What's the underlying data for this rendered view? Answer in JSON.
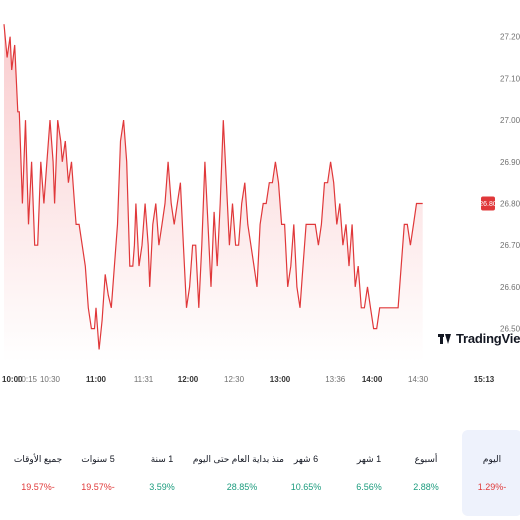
{
  "chart_data": {
    "type": "area",
    "y_ticks": [
      "27.20",
      "27.10",
      "27.00",
      "26.90",
      "26.80",
      "26.70",
      "26.60",
      "26.50"
    ],
    "ylim": [
      26.42,
      27.24
    ],
    "x_ticks": [
      {
        "label": "10:00",
        "major": true,
        "at": 0
      },
      {
        "label": "10:15",
        "major": false,
        "at": 15
      },
      {
        "label": "10:30",
        "major": false,
        "at": 30
      },
      {
        "label": "11:00",
        "major": true,
        "at": 60
      },
      {
        "label": "11:31",
        "major": false,
        "at": 91
      },
      {
        "label": "12:00",
        "major": true,
        "at": 120
      },
      {
        "label": "12:30",
        "major": false,
        "at": 150
      },
      {
        "label": "13:00",
        "major": true,
        "at": 180
      },
      {
        "label": "13:36",
        "major": false,
        "at": 216
      },
      {
        "label": "14:00",
        "major": true,
        "at": 240
      },
      {
        "label": "14:30",
        "major": false,
        "at": 270
      },
      {
        "label": "15:13",
        "major": true,
        "at": 313
      }
    ],
    "x_range_minutes": [
      0,
      313
    ],
    "last_price": "26.80",
    "series": [
      {
        "values": [
          [
            0,
            27.23
          ],
          [
            2,
            27.15
          ],
          [
            4,
            27.2
          ],
          [
            5,
            27.12
          ],
          [
            7,
            27.18
          ],
          [
            9,
            27.02
          ],
          [
            10,
            27.02
          ],
          [
            12,
            26.8
          ],
          [
            14,
            27.0
          ],
          [
            16,
            26.75
          ],
          [
            18,
            26.9
          ],
          [
            20,
            26.7
          ],
          [
            22,
            26.7
          ],
          [
            24,
            26.9
          ],
          [
            26,
            26.8
          ],
          [
            28,
            26.9
          ],
          [
            30,
            27.0
          ],
          [
            32,
            26.9
          ],
          [
            33,
            26.8
          ],
          [
            35,
            27.0
          ],
          [
            37,
            26.95
          ],
          [
            38,
            26.9
          ],
          [
            40,
            26.95
          ],
          [
            42,
            26.85
          ],
          [
            44,
            26.9
          ],
          [
            46,
            26.8
          ],
          [
            47,
            26.75
          ],
          [
            49,
            26.75
          ],
          [
            51,
            26.7
          ],
          [
            53,
            26.65
          ],
          [
            55,
            26.55
          ],
          [
            57,
            26.5
          ],
          [
            59,
            26.5
          ],
          [
            60,
            26.55
          ],
          [
            62,
            26.45
          ],
          [
            64,
            26.52
          ],
          [
            66,
            26.63
          ],
          [
            68,
            26.58
          ],
          [
            70,
            26.55
          ],
          [
            72,
            26.65
          ],
          [
            74,
            26.75
          ],
          [
            76,
            26.95
          ],
          [
            78,
            27.0
          ],
          [
            80,
            26.9
          ],
          [
            82,
            26.65
          ],
          [
            84,
            26.65
          ],
          [
            85,
            26.7
          ],
          [
            86,
            26.8
          ],
          [
            88,
            26.65
          ],
          [
            90,
            26.7
          ],
          [
            92,
            26.8
          ],
          [
            94,
            26.7
          ],
          [
            95,
            26.6
          ],
          [
            97,
            26.75
          ],
          [
            99,
            26.8
          ],
          [
            101,
            26.7
          ],
          [
            103,
            26.75
          ],
          [
            105,
            26.8
          ],
          [
            107,
            26.9
          ],
          [
            109,
            26.8
          ],
          [
            111,
            26.75
          ],
          [
            113,
            26.8
          ],
          [
            115,
            26.85
          ],
          [
            117,
            26.7
          ],
          [
            119,
            26.55
          ],
          [
            121,
            26.6
          ],
          [
            123,
            26.7
          ],
          [
            125,
            26.7
          ],
          [
            127,
            26.55
          ],
          [
            129,
            26.7
          ],
          [
            131,
            26.9
          ],
          [
            133,
            26.75
          ],
          [
            135,
            26.6
          ],
          [
            137,
            26.78
          ],
          [
            139,
            26.65
          ],
          [
            141,
            26.8
          ],
          [
            143,
            27.0
          ],
          [
            145,
            26.85
          ],
          [
            147,
            26.7
          ],
          [
            149,
            26.8
          ],
          [
            151,
            26.7
          ],
          [
            153,
            26.7
          ],
          [
            155,
            26.8
          ],
          [
            157,
            26.85
          ],
          [
            159,
            26.75
          ],
          [
            161,
            26.7
          ],
          [
            163,
            26.65
          ],
          [
            165,
            26.6
          ],
          [
            167,
            26.75
          ],
          [
            169,
            26.8
          ],
          [
            171,
            26.8
          ],
          [
            173,
            26.85
          ],
          [
            175,
            26.85
          ],
          [
            177,
            26.9
          ],
          [
            179,
            26.85
          ],
          [
            181,
            26.75
          ],
          [
            183,
            26.75
          ],
          [
            185,
            26.6
          ],
          [
            187,
            26.65
          ],
          [
            189,
            26.75
          ],
          [
            191,
            26.6
          ],
          [
            193,
            26.55
          ],
          [
            195,
            26.65
          ],
          [
            197,
            26.75
          ],
          [
            199,
            26.75
          ],
          [
            201,
            26.75
          ],
          [
            203,
            26.75
          ],
          [
            205,
            26.7
          ],
          [
            207,
            26.75
          ],
          [
            209,
            26.85
          ],
          [
            211,
            26.85
          ],
          [
            213,
            26.9
          ],
          [
            215,
            26.85
          ],
          [
            217,
            26.75
          ],
          [
            219,
            26.8
          ],
          [
            221,
            26.7
          ],
          [
            223,
            26.75
          ],
          [
            225,
            26.65
          ],
          [
            227,
            26.75
          ],
          [
            229,
            26.6
          ],
          [
            231,
            26.65
          ],
          [
            233,
            26.55
          ],
          [
            235,
            26.55
          ],
          [
            237,
            26.6
          ],
          [
            239,
            26.55
          ],
          [
            241,
            26.5
          ],
          [
            243,
            26.5
          ],
          [
            245,
            26.55
          ],
          [
            247,
            26.55
          ],
          [
            249,
            26.55
          ],
          [
            251,
            26.55
          ],
          [
            253,
            26.55
          ],
          [
            255,
            26.55
          ],
          [
            257,
            26.55
          ],
          [
            259,
            26.65
          ],
          [
            261,
            26.75
          ],
          [
            263,
            26.75
          ],
          [
            265,
            26.7
          ],
          [
            267,
            26.75
          ],
          [
            269,
            26.8
          ],
          [
            271,
            26.8
          ],
          [
            273,
            26.8
          ]
        ]
      }
    ]
  },
  "tabs": [
    {
      "label": "اليوم",
      "value": "1.29%-",
      "tone": "neg",
      "active": true
    },
    {
      "label": "أسبوع",
      "value": "2.88%",
      "tone": "pos",
      "active": false
    },
    {
      "label": "1 شهر",
      "value": "6.56%",
      "tone": "pos",
      "active": false
    },
    {
      "label": "6 شهر",
      "value": "10.65%",
      "tone": "pos",
      "active": false
    },
    {
      "label": "منذ بداية العام حتى اليوم",
      "value": "28.85%",
      "tone": "pos",
      "active": false
    },
    {
      "label": "1 سنة",
      "value": "3.59%",
      "tone": "pos",
      "active": false
    },
    {
      "label": "5 سنوات",
      "value": "19.57%-",
      "tone": "neg",
      "active": false
    },
    {
      "label": "جميع الأوقات",
      "value": "19.57%-",
      "tone": "neg",
      "active": false
    }
  ],
  "branding": {
    "logo_text": "TradingView"
  },
  "colors": {
    "line": "#e0383a",
    "fill_top": "#f9c6c8",
    "fill_bottom": "#ffffff",
    "positive": "#1c9c7e",
    "negative": "#e03a3a",
    "active_tab_bg": "#eef2fc"
  }
}
